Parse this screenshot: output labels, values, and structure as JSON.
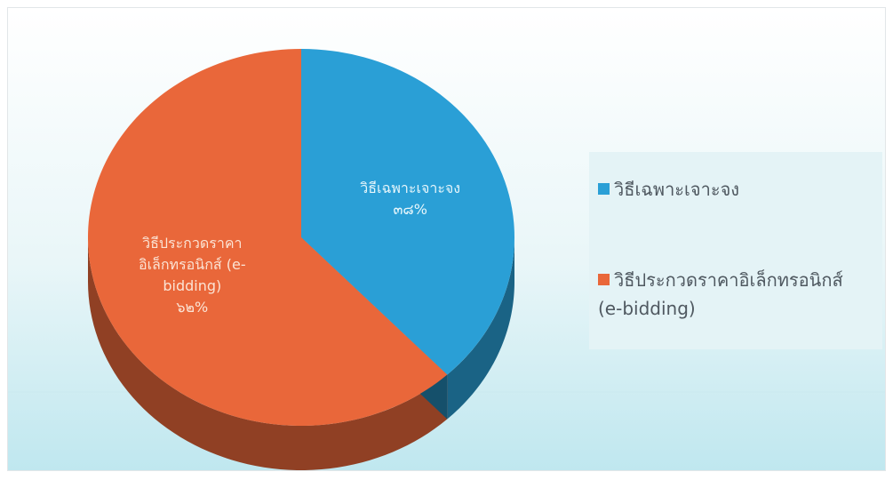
{
  "chart_data": {
    "type": "pie",
    "title": "",
    "slices": [
      {
        "name": "วิธีเฉพาะเจาะจง",
        "value": 38,
        "percent_label": "๓๘%",
        "label_lines": [
          "วิธีเฉพาะเจาะจง",
          "๓๘%"
        ],
        "color": "#2a9fd6"
      },
      {
        "name": "วิธีประกวดราคาอิเล็กทรอนิกส์ (e-bidding)",
        "value": 62,
        "percent_label": "๖๒%",
        "label_lines": [
          "วิธีประกวดราคา",
          "อิเล็กทรอนิกส์ (e-",
          "bidding)",
          "๖๒%"
        ],
        "color": "#e9673a"
      }
    ],
    "legend": {
      "position": "right",
      "entries": [
        {
          "lines": [
            "วิธีเฉพาะเจาะจง"
          ],
          "color": "#2a9fd6"
        },
        {
          "lines": [
            "วิธีประกวดราคาอิเล็กทรอนิกส์",
            "(e-bidding)"
          ],
          "color": "#e9673a"
        }
      ]
    }
  }
}
